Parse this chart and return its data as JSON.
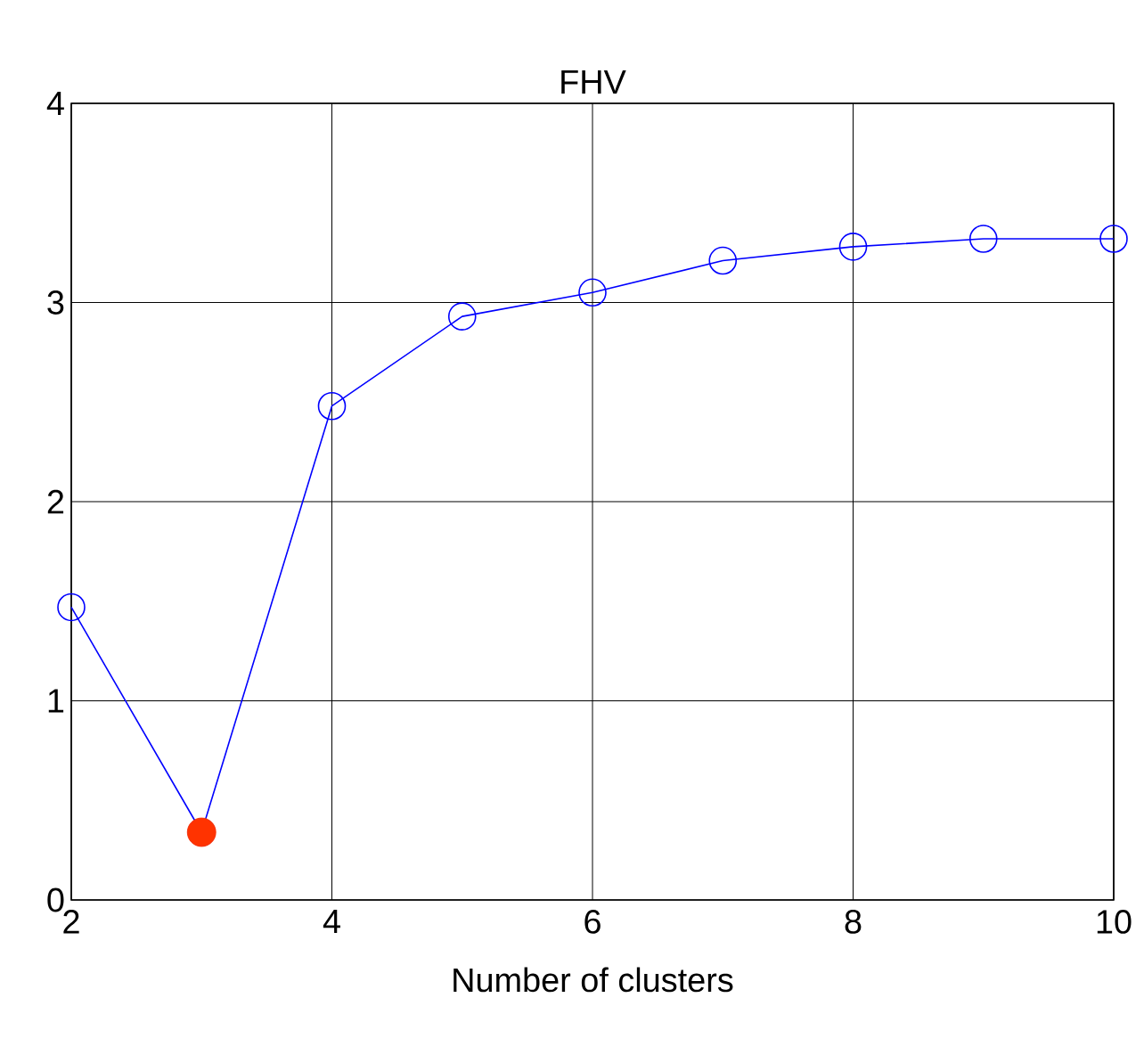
{
  "chart_data": {
    "type": "line",
    "title": "FHV",
    "xlabel": "Number of clusters",
    "xlim": [
      2,
      10
    ],
    "xticks": [
      2,
      4,
      6,
      8,
      10
    ],
    "ylim": [
      0,
      4
    ],
    "yticks": [
      0,
      1,
      2,
      3,
      4
    ],
    "grid": true,
    "marker": "circle",
    "series": [
      {
        "color": "#0000ff",
        "x": [
          2,
          3,
          4,
          5,
          6,
          7,
          8,
          9,
          10
        ],
        "values": [
          1.47,
          0.34,
          2.48,
          2.93,
          3.05,
          3.21,
          3.28,
          3.32,
          3.32
        ]
      },
      {
        "type": "scatter",
        "color": "#ff3300",
        "x": [
          3
        ],
        "values": [
          0.34
        ]
      }
    ]
  }
}
